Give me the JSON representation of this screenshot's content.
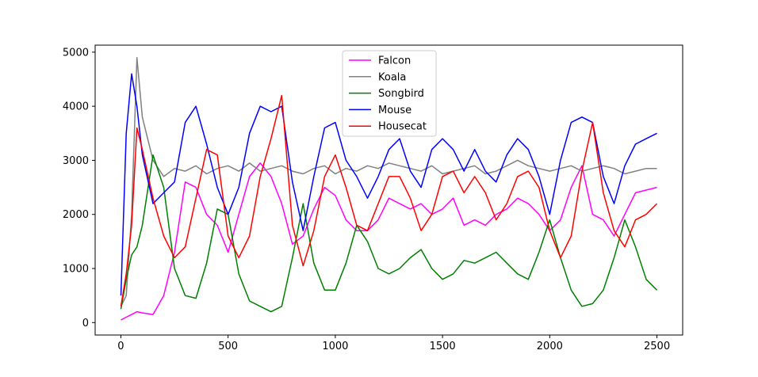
{
  "chart_data": {
    "type": "line",
    "title": "",
    "xlabel": "",
    "ylabel": "",
    "xlim": [
      -120,
      2620
    ],
    "ylim": [
      -230,
      5130
    ],
    "xticks": [
      0,
      500,
      1000,
      1500,
      2000,
      2500
    ],
    "yticks": [
      0,
      1000,
      2000,
      3000,
      4000,
      5000
    ],
    "grid": false,
    "legend_position": "top-center",
    "x": [
      0,
      25,
      50,
      75,
      100,
      150,
      200,
      250,
      300,
      350,
      400,
      450,
      500,
      550,
      600,
      650,
      700,
      750,
      800,
      850,
      900,
      950,
      1000,
      1050,
      1100,
      1150,
      1200,
      1250,
      1300,
      1350,
      1400,
      1450,
      1500,
      1550,
      1600,
      1650,
      1700,
      1750,
      1800,
      1850,
      1900,
      1950,
      2000,
      2050,
      2100,
      2150,
      2200,
      2250,
      2300,
      2350,
      2400,
      2450,
      2500
    ],
    "series": [
      {
        "name": "Falcon",
        "color": "#ff00ff",
        "values": [
          50,
          100,
          150,
          200,
          180,
          150,
          500,
          1300,
          2600,
          2500,
          2000,
          1800,
          1300,
          2000,
          2700,
          2950,
          2700,
          2200,
          1450,
          1600,
          2100,
          2500,
          2350,
          1900,
          1700,
          1700,
          1900,
          2300,
          2200,
          2100,
          2200,
          2000,
          2100,
          2300,
          1800,
          1900,
          1800,
          2000,
          2100,
          2300,
          2200,
          2000,
          1700,
          1900,
          2500,
          2900,
          2000,
          1900,
          1600,
          2000,
          2400,
          2450,
          2500
        ]
      },
      {
        "name": "Koala",
        "color": "#808080",
        "values": [
          300,
          500,
          2000,
          4900,
          3800,
          3000,
          2700,
          2850,
          2800,
          2900,
          2750,
          2850,
          2900,
          2800,
          2950,
          2800,
          2850,
          2900,
          2800,
          2750,
          2850,
          2900,
          2750,
          2850,
          2800,
          2900,
          2850,
          2950,
          2900,
          2850,
          2800,
          2900,
          2750,
          2800,
          2850,
          2900,
          2750,
          2800,
          2900,
          3000,
          2900,
          2850,
          2800,
          2850,
          2900,
          2800,
          2850,
          2900,
          2850,
          2750,
          2800,
          2850,
          2850
        ]
      },
      {
        "name": "Songbird",
        "color": "#008000",
        "values": [
          250,
          800,
          1250,
          1400,
          1800,
          3100,
          2500,
          1000,
          500,
          450,
          1100,
          2100,
          2000,
          900,
          400,
          300,
          200,
          300,
          1200,
          2200,
          1100,
          600,
          600,
          1100,
          1800,
          1500,
          1000,
          900,
          1000,
          1200,
          1350,
          1000,
          800,
          900,
          1150,
          1100,
          1200,
          1300,
          1100,
          900,
          800,
          1300,
          1900,
          1200,
          600,
          300,
          350,
          600,
          1200,
          1900,
          1400,
          800,
          600
        ]
      },
      {
        "name": "Mouse",
        "color": "#0000ff",
        "values": [
          500,
          3500,
          4600,
          4000,
          3100,
          2200,
          2400,
          2600,
          3700,
          4000,
          3300,
          2500,
          2000,
          2500,
          3500,
          4000,
          3900,
          4000,
          2600,
          1700,
          2700,
          3600,
          3700,
          3000,
          2700,
          2300,
          2700,
          3200,
          3400,
          2800,
          2500,
          3200,
          3400,
          3200,
          2800,
          3200,
          2800,
          2600,
          3100,
          3400,
          3200,
          2700,
          2000,
          3000,
          3700,
          3800,
          3700,
          2700,
          2200,
          2900,
          3300,
          3400,
          3500
        ]
      },
      {
        "name": "Housecat",
        "color": "#ff0000",
        "values": [
          300,
          900,
          1800,
          3600,
          3200,
          2300,
          1600,
          1200,
          1400,
          2300,
          3200,
          3100,
          1600,
          1200,
          1600,
          2700,
          3400,
          4200,
          1800,
          1050,
          1700,
          2700,
          3100,
          2500,
          1800,
          1700,
          2200,
          2700,
          2700,
          2300,
          1700,
          2000,
          2700,
          2800,
          2400,
          2700,
          2400,
          1900,
          2200,
          2700,
          2800,
          2500,
          1700,
          1200,
          1600,
          2800,
          3700,
          2400,
          1700,
          1400,
          1900,
          2000,
          2200
        ]
      }
    ]
  }
}
